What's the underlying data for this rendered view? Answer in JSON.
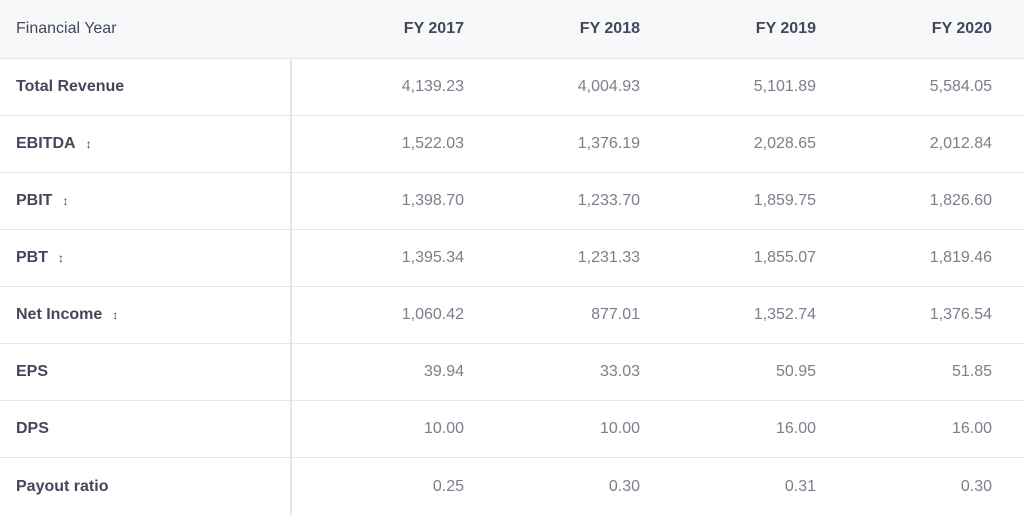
{
  "header": {
    "label": "Financial Year",
    "years": [
      "FY 2017",
      "FY 2018",
      "FY 2019",
      "FY 2020"
    ]
  },
  "rows": [
    {
      "label": "Total Revenue",
      "sortable": false,
      "values": [
        "4,139.23",
        "4,004.93",
        "5,101.89",
        "5,584.05"
      ]
    },
    {
      "label": "EBITDA",
      "sortable": true,
      "values": [
        "1,522.03",
        "1,376.19",
        "2,028.65",
        "2,012.84"
      ]
    },
    {
      "label": "PBIT",
      "sortable": true,
      "values": [
        "1,398.70",
        "1,233.70",
        "1,859.75",
        "1,826.60"
      ]
    },
    {
      "label": "PBT",
      "sortable": true,
      "values": [
        "1,395.34",
        "1,231.33",
        "1,855.07",
        "1,819.46"
      ]
    },
    {
      "label": "Net Income",
      "sortable": true,
      "values": [
        "1,060.42",
        "877.01",
        "1,352.74",
        "1,376.54"
      ]
    },
    {
      "label": "EPS",
      "sortable": false,
      "values": [
        "39.94",
        "33.03",
        "50.95",
        "51.85"
      ]
    },
    {
      "label": "DPS",
      "sortable": false,
      "values": [
        "10.00",
        "10.00",
        "16.00",
        "16.00"
      ]
    },
    {
      "label": "Payout ratio",
      "sortable": false,
      "values": [
        "0.25",
        "0.30",
        "0.31",
        "0.30"
      ]
    }
  ],
  "icons": {
    "sort": "sort-arrows-icon",
    "sort_glyph": "↕"
  }
}
